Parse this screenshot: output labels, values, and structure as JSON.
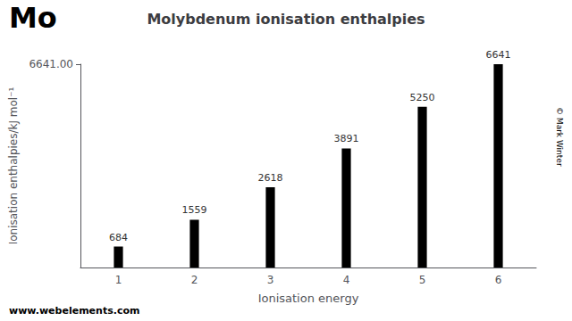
{
  "chart_data": {
    "type": "bar",
    "title": "Molybdenum ionisation enthalpies",
    "x_label": "Ionisation energy",
    "y_label": "Ionisation enthalpies/kJ mol⁻¹",
    "categories": [
      "1",
      "2",
      "3",
      "4",
      "5",
      "6"
    ],
    "values": [
      684,
      1559,
      2618,
      3891,
      5250,
      6641
    ],
    "color": "#000000",
    "ylim": [
      0,
      6641
    ],
    "yticks": [
      {
        "value": 6641,
        "label": "6641.00"
      }
    ],
    "grid": false,
    "data_labels": true,
    "annotations": [
      "Mo",
      "www.webelements.com",
      "© Mark Winter"
    ]
  }
}
